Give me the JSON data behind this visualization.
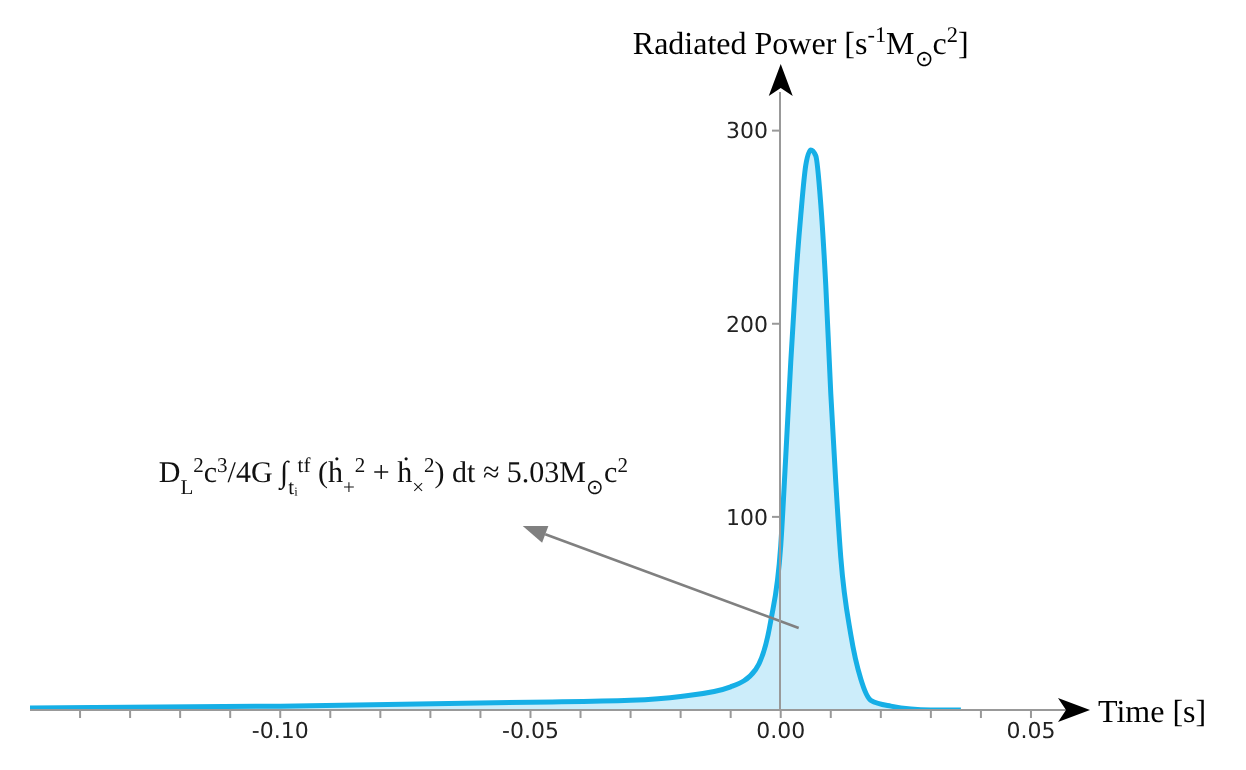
{
  "chart_data": {
    "type": "area",
    "xlabel": "Time [s]",
    "ylabel": "Radiated Power [s$^{-1}$M$_{⊙}$c$^{2}$]",
    "annotations": [
      "D$_{L}$$^{2}$c$^{3}$/4G ∫$_{tᵢ}$$^{tf}$ (ḣ$_{+}$$^{2}$ + ḣ$_{×}$$^{2}$) dt ≈ 5.03M$_{⊙}$c$^{2}$"
    ],
    "series": [
      {
        "color": "#16afe6",
        "x": [
          -0.15,
          -0.1,
          -0.05,
          -0.03,
          -0.02,
          -0.01,
          -0.005,
          -0.002,
          0,
          0.001,
          0.002,
          0.003,
          0.004,
          0.005,
          0.006,
          0.007,
          0.008,
          0.009,
          0.01,
          0.011,
          0.012,
          0.014,
          0.016,
          0.018,
          0.022,
          0.03,
          0.036
        ],
        "values": [
          1,
          2,
          4,
          5,
          7,
          12,
          21,
          46,
          85,
          131,
          180,
          223,
          256,
          282,
          290,
          287,
          262,
          220,
          164,
          118,
          79,
          39,
          16,
          5,
          2,
          0,
          0
        ]
      }
    ],
    "xlim": [
      -0.15,
      0.057
    ],
    "xticks": [
      {
        "value": -0.14,
        "label": null
      },
      {
        "value": -0.13,
        "label": null
      },
      {
        "value": -0.12,
        "label": null
      },
      {
        "value": -0.11,
        "label": null
      },
      {
        "value": -0.1,
        "label": "-0.10"
      },
      {
        "value": -0.09,
        "label": null
      },
      {
        "value": -0.08,
        "label": null
      },
      {
        "value": -0.07,
        "label": null
      },
      {
        "value": -0.06,
        "label": null
      },
      {
        "value": -0.05,
        "label": "-0.05"
      },
      {
        "value": -0.04,
        "label": null
      },
      {
        "value": -0.03,
        "label": null
      },
      {
        "value": -0.02,
        "label": null
      },
      {
        "value": -0.01,
        "label": null
      },
      {
        "value": 0,
        "label": "0.00"
      },
      {
        "value": 0.01,
        "label": null
      },
      {
        "value": 0.02,
        "label": null
      },
      {
        "value": 0.03,
        "label": null
      },
      {
        "value": 0.04,
        "label": null
      },
      {
        "value": 0.05,
        "label": "0.05"
      }
    ],
    "ylim": [
      0,
      320
    ],
    "yticks": [
      100,
      200,
      300
    ],
    "grid": false,
    "legend": false
  }
}
